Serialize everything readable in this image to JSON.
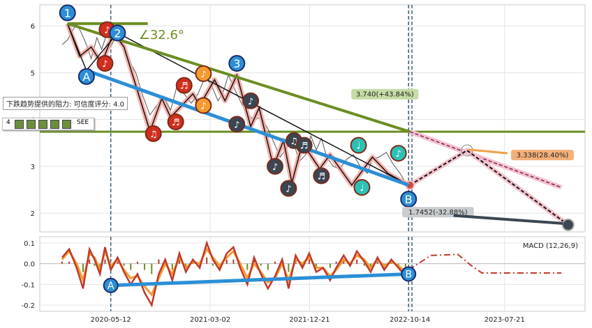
{
  "chart_data": {
    "type": "line",
    "price_panel": {
      "yticks": [
        2,
        3,
        4,
        5,
        6
      ],
      "ylim": [
        1.6,
        6.45
      ],
      "price_series": [
        [
          "2019-12-20",
          5.6
        ],
        [
          "2020-01-05",
          5.7
        ],
        [
          "2020-01-20",
          5.9
        ],
        [
          "2020-02-01",
          6.05
        ],
        [
          "2020-02-15",
          5.85
        ],
        [
          "2020-03-01",
          5.6
        ],
        [
          "2020-03-15",
          5.3
        ],
        [
          "2020-04-01",
          5.75
        ],
        [
          "2020-04-15",
          5.5
        ],
        [
          "2020-05-01",
          5.85
        ],
        [
          "2020-05-15",
          5.6
        ],
        [
          "2020-06-01",
          5.85
        ],
        [
          "2020-06-20",
          5.55
        ],
        [
          "2020-07-10",
          5.2
        ],
        [
          "2020-07-25",
          5.0
        ],
        [
          "2020-08-15",
          4.5
        ],
        [
          "2020-09-05",
          4.1
        ],
        [
          "2020-09-25",
          4.3
        ],
        [
          "2020-10-15",
          4.5
        ],
        [
          "2020-11-05",
          4.2
        ],
        [
          "2020-11-25",
          4.75
        ],
        [
          "2020-12-15",
          4.55
        ],
        [
          "2021-01-05",
          4.35
        ],
        [
          "2021-01-25",
          4.55
        ],
        [
          "2021-02-15",
          4.9
        ],
        [
          "2021-03-05",
          4.75
        ],
        [
          "2021-03-25",
          4.4
        ],
        [
          "2021-04-10",
          4.6
        ],
        [
          "2021-04-25",
          4.95
        ],
        [
          "2021-05-10",
          4.7
        ],
        [
          "2021-05-30",
          4.4
        ],
        [
          "2021-06-20",
          4.1
        ],
        [
          "2021-07-10",
          4.0
        ],
        [
          "2021-07-30",
          4.05
        ],
        [
          "2021-08-20",
          3.8
        ],
        [
          "2021-09-10",
          3.45
        ],
        [
          "2021-09-25",
          3.2
        ],
        [
          "2021-10-15",
          3.4
        ],
        [
          "2021-11-01",
          3.6
        ],
        [
          "2021-11-20",
          3.1
        ],
        [
          "2021-12-10",
          3.25
        ],
        [
          "2021-12-25",
          3.65
        ],
        [
          "2022-01-10",
          3.35
        ],
        [
          "2022-01-25",
          3.6
        ],
        [
          "2022-02-10",
          3.2
        ],
        [
          "2022-03-01",
          3.0
        ],
        [
          "2022-03-20",
          2.95
        ],
        [
          "2022-04-10",
          3.15
        ],
        [
          "2022-04-30",
          3.25
        ],
        [
          "2022-05-20",
          3.0
        ],
        [
          "2022-06-10",
          2.85
        ],
        [
          "2022-06-25",
          3.15
        ],
        [
          "2022-07-15",
          3.2
        ],
        [
          "2022-08-05",
          3.3
        ],
        [
          "2022-08-25",
          3.05
        ],
        [
          "2022-09-15",
          2.85
        ],
        [
          "2022-10-01",
          2.65
        ],
        [
          "2022-10-10",
          2.6
        ]
      ],
      "swing_path": [
        [
          "2020-01-05",
          6.05
        ],
        [
          "2020-02-10",
          5.35
        ],
        [
          "2020-03-15",
          5.55
        ],
        [
          "2020-04-15",
          5.2
        ],
        [
          "2020-05-20",
          5.85
        ],
        [
          "2020-06-20",
          5.55
        ],
        [
          "2020-09-05",
          3.75
        ],
        [
          "2020-10-10",
          4.45
        ],
        [
          "2020-11-05",
          4.05
        ],
        [
          "2021-01-10",
          4.55
        ],
        [
          "2021-01-30",
          4.3
        ],
        [
          "2021-03-15",
          4.85
        ],
        [
          "2021-04-15",
          4.4
        ],
        [
          "2021-05-20",
          4.95
        ],
        [
          "2021-06-30",
          3.85
        ],
        [
          "2021-07-25",
          4.25
        ],
        [
          "2021-09-05",
          3.0
        ],
        [
          "2021-10-05",
          3.55
        ],
        [
          "2021-10-30",
          2.65
        ],
        [
          "2021-11-30",
          3.5
        ],
        [
          "2022-01-20",
          2.95
        ],
        [
          "2022-02-20",
          3.25
        ],
        [
          "2022-04-25",
          2.6
        ],
        [
          "2022-06-25",
          3.2
        ],
        [
          "2022-08-10",
          2.85
        ],
        [
          "2022-10-10",
          2.6
        ]
      ],
      "abc_wave": [
        [
          "2020-01-05",
          6.05
        ],
        [
          "2020-03-01",
          5.05
        ],
        [
          "2020-06-01",
          5.85
        ],
        [
          "2022-10-10",
          2.6
        ]
      ],
      "wave_labels": [
        {
          "label": "1",
          "date": "2020-01-05",
          "y": 6.28
        },
        {
          "label": "2",
          "date": "2020-06-01",
          "y": 5.85
        },
        {
          "label": "3",
          "date": "2021-05-20",
          "y": 5.2
        },
        {
          "label": "A",
          "date": "2020-03-01",
          "y": 4.92
        },
        {
          "label": "B",
          "date": "2022-10-10",
          "y": 2.3
        }
      ],
      "note_markers": [
        {
          "glyph": "♪",
          "date": "2020-05-01",
          "y": 5.92,
          "color": "#d22e1d"
        },
        {
          "glyph": "♪",
          "date": "2020-04-25",
          "y": 5.2,
          "color": "#d22e1d"
        },
        {
          "glyph": "♫",
          "date": "2020-09-15",
          "y": 3.7,
          "color": "#d22e1d"
        },
        {
          "glyph": "♬",
          "date": "2020-11-20",
          "y": 3.95,
          "color": "#d22e1d"
        },
        {
          "glyph": "♬",
          "date": "2020-12-15",
          "y": 4.73,
          "color": "#d22e1d"
        },
        {
          "glyph": "♪",
          "date": "2021-02-10",
          "y": 4.98,
          "color": "#f59a2e"
        },
        {
          "glyph": "♪",
          "date": "2021-02-10",
          "y": 4.3,
          "color": "#f59a2e"
        },
        {
          "glyph": "♪",
          "date": "2021-05-20",
          "y": 3.9,
          "color": "#3a4651"
        },
        {
          "glyph": "♪",
          "date": "2021-06-30",
          "y": 4.4,
          "color": "#3a4651"
        },
        {
          "glyph": "♪",
          "date": "2021-09-10",
          "y": 3.0,
          "color": "#3a4651"
        },
        {
          "glyph": "♪",
          "date": "2021-10-20",
          "y": 2.53,
          "color": "#3a4651"
        },
        {
          "glyph": "♫",
          "date": "2021-11-05",
          "y": 3.55,
          "color": "#3a4651"
        },
        {
          "glyph": "♬",
          "date": "2021-12-05",
          "y": 3.45,
          "color": "#3a4651"
        },
        {
          "glyph": "♬",
          "date": "2022-01-25",
          "y": 2.8,
          "color": "#3a4651"
        },
        {
          "glyph": "♩",
          "date": "2022-05-15",
          "y": 3.45,
          "color": "#2cc1b4"
        },
        {
          "glyph": "♩",
          "date": "2022-05-25",
          "y": 2.55,
          "color": "#2cc1b4"
        },
        {
          "glyph": "♪",
          "date": "2022-09-10",
          "y": 3.28,
          "color": "#2cc1b4"
        }
      ],
      "resistance_line": {
        "from": [
          "2020-01-05",
          6.05
        ],
        "to": [
          "2022-10-14",
          3.74
        ]
      },
      "support_line": {
        "from": [
          "2020-03-01",
          5.05
        ],
        "to": [
          "2022-10-10",
          2.6
        ]
      },
      "horizontal_level": 3.74,
      "angle_label": "∠32.6°",
      "projection_upper": {
        "from": [
          "2022-10-14",
          3.74
        ],
        "to": [
          "2024-01-05",
          2.55
        ]
      },
      "projection_lower": {
        "from": [
          "2022-10-14",
          2.6
        ],
        "to": [
          "2023-04-01",
          3.34
        ],
        "to2": [
          "2024-01-25",
          1.75
        ]
      },
      "annotations": [
        {
          "text": "3.740(+43.84%)",
          "date": "2022-08-01",
          "y": 4.52,
          "bg": "#c5dca6"
        },
        {
          "text": "3.338(28.40%)",
          "date": "2023-11-10",
          "y": 3.22,
          "bg": "#f4b07a"
        },
        {
          "text": "1.7452(-32.88%)",
          "date": "2023-01-05",
          "y": 2.0,
          "bg": "#c9cdd0"
        }
      ],
      "resistance_note": "下跌趋势提供的阻力: 可信度评分:  4.0",
      "rating_label": "4",
      "rating_icons": 5,
      "rating_more": "SEE"
    },
    "macd_panel": {
      "label": "MACD (12,26,9)",
      "yticks": [
        0.1,
        0.0,
        -0.1,
        -0.2
      ],
      "ylim": [
        -0.23,
        0.13
      ],
      "macd": [
        [
          "2019-12-20",
          0.03
        ],
        [
          "2020-01-10",
          0.07
        ],
        [
          "2020-02-01",
          -0.02
        ],
        [
          "2020-02-20",
          -0.12
        ],
        [
          "2020-03-10",
          0.07
        ],
        [
          "2020-03-25",
          0.02
        ],
        [
          "2020-04-10",
          -0.05
        ],
        [
          "2020-04-25",
          0.08
        ],
        [
          "2020-05-12",
          -0.03
        ],
        [
          "2020-06-01",
          0.03
        ],
        [
          "2020-06-20",
          -0.04
        ],
        [
          "2020-07-10",
          -0.1
        ],
        [
          "2020-07-30",
          -0.05
        ],
        [
          "2020-08-20",
          -0.14
        ],
        [
          "2020-09-10",
          -0.2
        ],
        [
          "2020-10-01",
          -0.05
        ],
        [
          "2020-10-20",
          0.02
        ],
        [
          "2020-11-10",
          -0.08
        ],
        [
          "2020-12-01",
          0.05
        ],
        [
          "2020-12-20",
          -0.04
        ],
        [
          "2021-01-10",
          0.02
        ],
        [
          "2021-01-30",
          -0.02
        ],
        [
          "2021-02-20",
          0.1
        ],
        [
          "2021-03-10",
          0.02
        ],
        [
          "2021-03-30",
          -0.03
        ],
        [
          "2021-04-20",
          0.05
        ],
        [
          "2021-05-10",
          0.08
        ],
        [
          "2021-05-30",
          -0.02
        ],
        [
          "2021-06-20",
          -0.1
        ],
        [
          "2021-07-10",
          0.03
        ],
        [
          "2021-07-30",
          -0.05
        ],
        [
          "2021-08-20",
          -0.12
        ],
        [
          "2021-09-10",
          -0.06
        ],
        [
          "2021-10-01",
          0.02
        ],
        [
          "2021-10-20",
          -0.12
        ],
        [
          "2021-11-10",
          0.04
        ],
        [
          "2021-11-30",
          -0.02
        ],
        [
          "2021-12-20",
          0.05
        ],
        [
          "2022-01-10",
          -0.04
        ],
        [
          "2022-01-30",
          -0.02
        ],
        [
          "2022-02-20",
          -0.08
        ],
        [
          "2022-03-10",
          -0.02
        ],
        [
          "2022-04-01",
          0.04
        ],
        [
          "2022-04-20",
          -0.01
        ],
        [
          "2022-05-10",
          0.06
        ],
        [
          "2022-06-01",
          0.01
        ],
        [
          "2022-06-20",
          -0.04
        ],
        [
          "2022-07-10",
          0.03
        ],
        [
          "2022-07-30",
          -0.03
        ],
        [
          "2022-08-20",
          0.02
        ],
        [
          "2022-09-10",
          -0.02
        ],
        [
          "2022-10-01",
          -0.06
        ],
        [
          "2022-10-10",
          -0.04
        ]
      ],
      "signal": [
        [
          "2019-12-20",
          0.02
        ],
        [
          "2020-01-10",
          0.06
        ],
        [
          "2020-02-01",
          0.0
        ],
        [
          "2020-02-20",
          -0.08
        ],
        [
          "2020-03-10",
          0.05
        ],
        [
          "2020-03-25",
          0.03
        ],
        [
          "2020-04-10",
          -0.03
        ],
        [
          "2020-04-25",
          0.06
        ],
        [
          "2020-05-12",
          -0.01
        ],
        [
          "2020-06-01",
          0.02
        ],
        [
          "2020-06-20",
          -0.03
        ],
        [
          "2020-07-10",
          -0.07
        ],
        [
          "2020-07-30",
          -0.06
        ],
        [
          "2020-08-20",
          -0.11
        ],
        [
          "2020-09-10",
          -0.15
        ],
        [
          "2020-10-01",
          -0.07
        ],
        [
          "2020-10-20",
          0.0
        ],
        [
          "2020-11-10",
          -0.05
        ],
        [
          "2020-12-01",
          0.03
        ],
        [
          "2020-12-20",
          -0.02
        ],
        [
          "2021-01-10",
          0.01
        ],
        [
          "2021-01-30",
          0.0
        ],
        [
          "2021-02-20",
          0.07
        ],
        [
          "2021-03-10",
          0.03
        ],
        [
          "2021-03-30",
          -0.01
        ],
        [
          "2021-04-20",
          0.03
        ],
        [
          "2021-05-10",
          0.06
        ],
        [
          "2021-05-30",
          0.0
        ],
        [
          "2021-06-20",
          -0.07
        ],
        [
          "2021-07-10",
          0.0
        ],
        [
          "2021-07-30",
          -0.04
        ],
        [
          "2021-08-20",
          -0.09
        ],
        [
          "2021-09-10",
          -0.07
        ],
        [
          "2021-10-01",
          0.0
        ],
        [
          "2021-10-20",
          -0.08
        ],
        [
          "2021-11-10",
          0.02
        ],
        [
          "2021-11-30",
          0.0
        ],
        [
          "2021-12-20",
          0.03
        ],
        [
          "2022-01-10",
          -0.02
        ],
        [
          "2022-01-30",
          -0.02
        ],
        [
          "2022-02-20",
          -0.06
        ],
        [
          "2022-03-10",
          -0.03
        ],
        [
          "2022-04-01",
          0.02
        ],
        [
          "2022-04-20",
          0.0
        ],
        [
          "2022-05-10",
          0.04
        ],
        [
          "2022-06-01",
          0.02
        ],
        [
          "2022-06-20",
          -0.02
        ],
        [
          "2022-07-10",
          0.02
        ],
        [
          "2022-07-30",
          -0.01
        ],
        [
          "2022-08-20",
          0.01
        ],
        [
          "2022-09-10",
          -0.01
        ],
        [
          "2022-10-01",
          -0.04
        ],
        [
          "2022-10-10",
          -0.04
        ]
      ],
      "projection": [
        [
          "2022-10-10",
          -0.03
        ],
        [
          "2022-12-15",
          0.04
        ],
        [
          "2023-03-05",
          0.045
        ],
        [
          "2023-04-10",
          -0.005
        ],
        [
          "2023-05-15",
          -0.045
        ],
        [
          "2024-01-05",
          -0.045
        ]
      ],
      "trend_line": {
        "from": [
          "2020-05-12",
          -0.105
        ],
        "to": [
          "2022-10-10",
          -0.05
        ]
      },
      "labels": [
        {
          "label": "A",
          "date": "2020-05-12",
          "y": -0.105
        },
        {
          "label": "B",
          "date": "2022-10-10",
          "y": -0.05
        }
      ]
    },
    "x_axis": {
      "type": "date",
      "ticks": [
        "2020-05-12",
        "2021-03-02",
        "2021-12-21",
        "2022-10-14",
        "2023-07-21"
      ],
      "range": [
        "2019-10-15",
        "2024-03-15"
      ]
    },
    "vertical_markers": [
      "2020-05-12",
      "2022-10-10",
      "2022-10-20"
    ],
    "grid": true
  }
}
